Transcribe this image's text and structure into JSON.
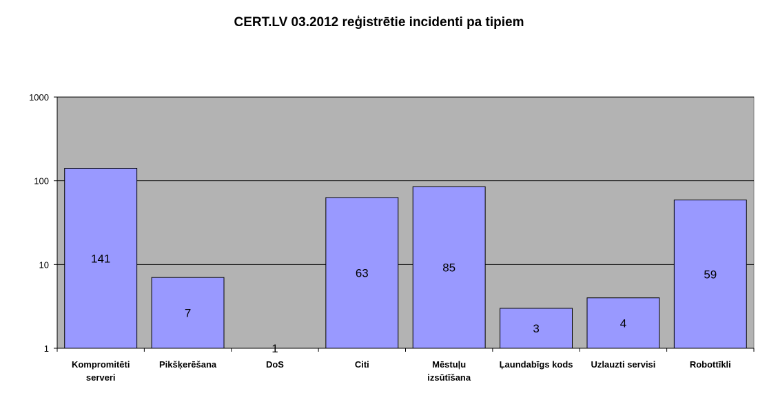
{
  "chart_data": {
    "type": "bar",
    "title": "CERT.LV 03.2012 reģistrētie incidenti pa tipiem",
    "categories": [
      [
        "Kompromitēti",
        "serveri"
      ],
      [
        "Pikšķerēšana"
      ],
      [
        "DoS"
      ],
      [
        "Citi"
      ],
      [
        "Mēstuļu",
        "izsūtīšana"
      ],
      [
        "Ļaundabīgs kods"
      ],
      [
        "Uzlauzti servisi"
      ],
      [
        "Robottīkli"
      ]
    ],
    "values": [
      141,
      7,
      1,
      63,
      85,
      3,
      4,
      59
    ],
    "data_labels": [
      "141",
      "7",
      "1",
      "63",
      "85",
      "3",
      "4",
      "59"
    ],
    "y_scale": "log",
    "ylim": [
      1,
      1000
    ],
    "y_ticks": [
      1,
      10,
      100,
      1000
    ],
    "y_tick_labels": [
      "1",
      "10",
      "100",
      "1000"
    ],
    "grid": true,
    "legend": "none",
    "colors": {
      "plot_background": "#b3b3b3",
      "bar_fill": "#9999ff",
      "bar_stroke": "#000000",
      "grid": "#000000"
    }
  }
}
